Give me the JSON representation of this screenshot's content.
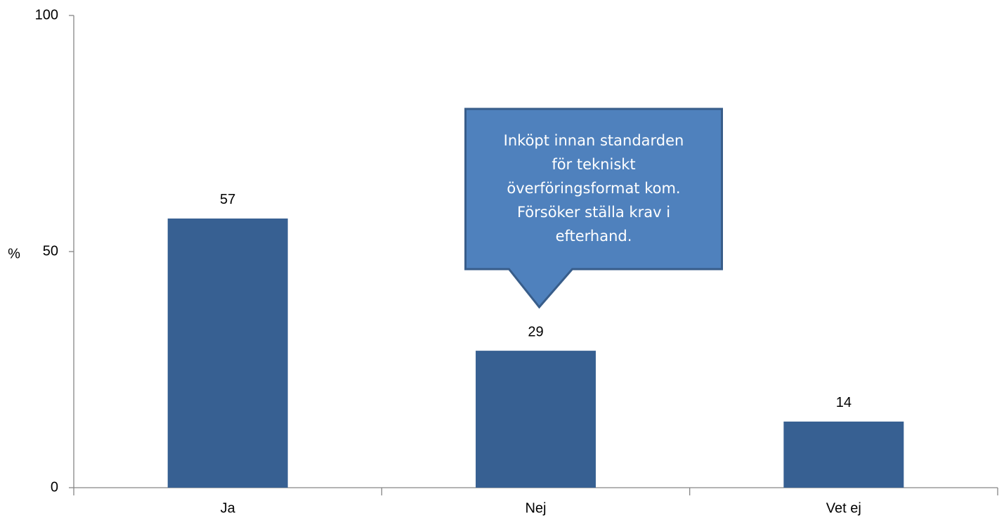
{
  "chart_data": {
    "type": "bar",
    "ylabel": "%",
    "categories": [
      "Ja",
      "Nej",
      "Vet ej"
    ],
    "values": [
      57,
      29,
      14
    ],
    "color": "#376092",
    "ylim": [
      0,
      100
    ],
    "yticks": [
      0,
      50,
      100
    ],
    "grid": false,
    "data_labels": true,
    "annotation": {
      "lines": [
        "Inköpt innan standarden",
        "för tekniskt",
        "överföringsformat kom.",
        "Försöker ställa krav i",
        "efterhand."
      ],
      "category": 1
    }
  }
}
